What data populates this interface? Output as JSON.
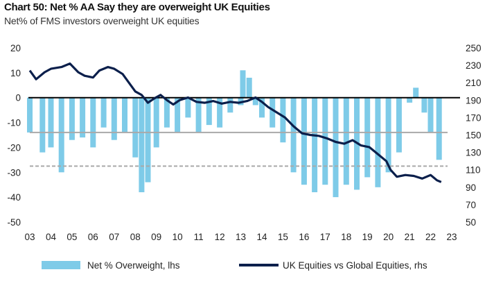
{
  "title": "Chart 50: Net % AA Say they are overweight UK Equities",
  "subtitle": "Net% of FMS investors overweight UK equities",
  "colors": {
    "bars": "#7ecbe8",
    "line": "#0b1f4b",
    "zero": "#000000",
    "ref": "#a9a9a9"
  },
  "chart_data": {
    "type": "bar+line",
    "title": "Chart 50: Net % AA Say they are overweight UK Equities",
    "subtitle": "Net% of FMS investors overweight UK equities",
    "x_tick_labels": [
      "03",
      "04",
      "05",
      "06",
      "07",
      "08",
      "09",
      "10",
      "11",
      "12",
      "13",
      "14",
      "15",
      "16",
      "17",
      "18",
      "19",
      "20",
      "21",
      "22",
      "23"
    ],
    "x_range": [
      2003,
      2023
    ],
    "y_left": {
      "range": [
        -50,
        20
      ],
      "ticks": [
        "20",
        "10",
        "0",
        "-10",
        "-20",
        "-30",
        "-40",
        "-50"
      ]
    },
    "y_right": {
      "range": [
        50,
        250
      ],
      "ticks": [
        "250",
        "230",
        "210",
        "190",
        "170",
        "150",
        "130",
        "110",
        "90",
        "70",
        "50"
      ]
    },
    "reference_lines": [
      {
        "axis": "left",
        "value": 0,
        "style": "solid-black"
      },
      {
        "axis": "left",
        "value": -14,
        "style": "solid-grey"
      },
      {
        "axis": "left",
        "value": -27.5,
        "style": "dashed-grey"
      }
    ],
    "series": [
      {
        "name": "Net % Overweight, lhs",
        "axis": "left",
        "kind": "bar",
        "points": [
          [
            2003.0,
            -14
          ],
          [
            2003.6,
            -22
          ],
          [
            2004.0,
            -20
          ],
          [
            2004.5,
            -30
          ],
          [
            2005.0,
            -17
          ],
          [
            2005.5,
            -16
          ],
          [
            2006.0,
            -20
          ],
          [
            2006.5,
            -12
          ],
          [
            2007.0,
            -17
          ],
          [
            2007.5,
            -14
          ],
          [
            2008.0,
            -24
          ],
          [
            2008.3,
            -38
          ],
          [
            2008.6,
            -34
          ],
          [
            2009.0,
            -20
          ],
          [
            2009.5,
            -12
          ],
          [
            2010.0,
            -14
          ],
          [
            2010.5,
            -8
          ],
          [
            2011.0,
            -14
          ],
          [
            2011.5,
            -11
          ],
          [
            2012.0,
            -12
          ],
          [
            2012.5,
            -6
          ],
          [
            2013.0,
            -3
          ],
          [
            2013.1,
            11
          ],
          [
            2013.4,
            8
          ],
          [
            2013.7,
            -3
          ],
          [
            2014.0,
            -8
          ],
          [
            2014.5,
            -12
          ],
          [
            2015.0,
            -18
          ],
          [
            2015.5,
            -30
          ],
          [
            2016.0,
            -35
          ],
          [
            2016.5,
            -38
          ],
          [
            2017.0,
            -35
          ],
          [
            2017.5,
            -40
          ],
          [
            2018.0,
            -35
          ],
          [
            2018.5,
            -37
          ],
          [
            2019.0,
            -32
          ],
          [
            2019.5,
            -36
          ],
          [
            2020.0,
            -30
          ],
          [
            2020.5,
            -22
          ],
          [
            2021.0,
            -2
          ],
          [
            2021.3,
            4
          ],
          [
            2021.7,
            -6
          ],
          [
            2022.0,
            -14
          ],
          [
            2022.4,
            -25
          ]
        ]
      },
      {
        "name": "UK Equities vs Global Equities, rhs",
        "axis": "right",
        "kind": "line",
        "points": [
          [
            2003.0,
            224
          ],
          [
            2003.3,
            214
          ],
          [
            2003.7,
            222
          ],
          [
            2004.0,
            226
          ],
          [
            2004.5,
            228
          ],
          [
            2004.9,
            232
          ],
          [
            2005.3,
            222
          ],
          [
            2005.6,
            218
          ],
          [
            2006.0,
            216
          ],
          [
            2006.3,
            224
          ],
          [
            2006.7,
            228
          ],
          [
            2007.0,
            226
          ],
          [
            2007.4,
            220
          ],
          [
            2007.7,
            210
          ],
          [
            2008.0,
            200
          ],
          [
            2008.3,
            196
          ],
          [
            2008.6,
            187
          ],
          [
            2008.9,
            192
          ],
          [
            2009.2,
            196
          ],
          [
            2009.5,
            190
          ],
          [
            2009.8,
            185
          ],
          [
            2010.1,
            190
          ],
          [
            2010.5,
            193
          ],
          [
            2010.9,
            188
          ],
          [
            2011.3,
            187
          ],
          [
            2011.7,
            189
          ],
          [
            2012.1,
            186
          ],
          [
            2012.5,
            188
          ],
          [
            2012.9,
            187
          ],
          [
            2013.3,
            189
          ],
          [
            2013.7,
            193
          ],
          [
            2014.0,
            188
          ],
          [
            2014.3,
            182
          ],
          [
            2014.7,
            176
          ],
          [
            2015.1,
            170
          ],
          [
            2015.5,
            160
          ],
          [
            2015.9,
            152
          ],
          [
            2016.3,
            150
          ],
          [
            2016.7,
            149
          ],
          [
            2017.1,
            146
          ],
          [
            2017.5,
            142
          ],
          [
            2017.9,
            140
          ],
          [
            2018.3,
            144
          ],
          [
            2018.7,
            138
          ],
          [
            2019.1,
            136
          ],
          [
            2019.5,
            128
          ],
          [
            2019.9,
            120
          ],
          [
            2020.1,
            110
          ],
          [
            2020.4,
            102
          ],
          [
            2020.8,
            104
          ],
          [
            2021.2,
            103
          ],
          [
            2021.6,
            100
          ],
          [
            2022.0,
            104
          ],
          [
            2022.3,
            98
          ],
          [
            2022.5,
            96
          ]
        ]
      }
    ],
    "legend": [
      {
        "label": "Net % Overweight, lhs",
        "kind": "bar"
      },
      {
        "label": "UK Equities vs Global Equities, rhs",
        "kind": "line"
      }
    ],
    "legend_position": "bottom"
  }
}
